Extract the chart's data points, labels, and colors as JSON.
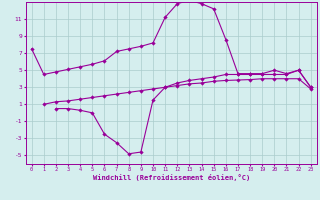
{
  "curve1_x": [
    0,
    1,
    2,
    3,
    4,
    5,
    6,
    7,
    8,
    9,
    10,
    11,
    12,
    13,
    14,
    15,
    16,
    17,
    18,
    19,
    20,
    21,
    22,
    23
  ],
  "curve1_y": [
    7.5,
    4.5,
    4.8,
    5.1,
    5.4,
    5.7,
    6.1,
    7.2,
    7.5,
    7.8,
    8.2,
    11.2,
    12.8,
    13.2,
    12.8,
    12.2,
    8.6,
    4.6,
    4.6,
    4.6,
    5.0,
    4.6,
    5.0,
    3.0
  ],
  "curve2_x": [
    2,
    3,
    4,
    5,
    6,
    7,
    8,
    9,
    10,
    11,
    12,
    13,
    14,
    15,
    16,
    17,
    18,
    19,
    20,
    21,
    22,
    23
  ],
  "curve2_y": [
    0.5,
    0.5,
    0.3,
    0.0,
    -2.5,
    -3.5,
    -4.8,
    -4.6,
    1.5,
    3.0,
    3.5,
    3.8,
    4.0,
    4.2,
    4.5,
    4.5,
    4.5,
    4.5,
    4.5,
    4.5,
    5.0,
    3.0
  ],
  "curve3_x": [
    1,
    2,
    3,
    4,
    5,
    6,
    7,
    8,
    9,
    10,
    11,
    12,
    13,
    14,
    15,
    16,
    17,
    18,
    19,
    20,
    21,
    22,
    23
  ],
  "curve3_y": [
    1.0,
    1.3,
    1.4,
    1.6,
    1.8,
    2.0,
    2.2,
    2.4,
    2.6,
    2.8,
    3.0,
    3.2,
    3.4,
    3.5,
    3.7,
    3.8,
    3.85,
    3.9,
    4.0,
    4.0,
    4.0,
    4.0,
    2.8
  ],
  "color": "#990099",
  "bg_color": "#d5eeee",
  "grid_color": "#aacccc",
  "xlabel": "Windchill (Refroidissement éolien,°C)",
  "ylim": [
    -6,
    13
  ],
  "xlim": [
    -0.5,
    23.5
  ],
  "yticks": [
    -5,
    -3,
    -1,
    1,
    3,
    5,
    7,
    9,
    11
  ],
  "xticks": [
    0,
    1,
    2,
    3,
    4,
    5,
    6,
    7,
    8,
    9,
    10,
    11,
    12,
    13,
    14,
    15,
    16,
    17,
    18,
    19,
    20,
    21,
    22,
    23
  ]
}
